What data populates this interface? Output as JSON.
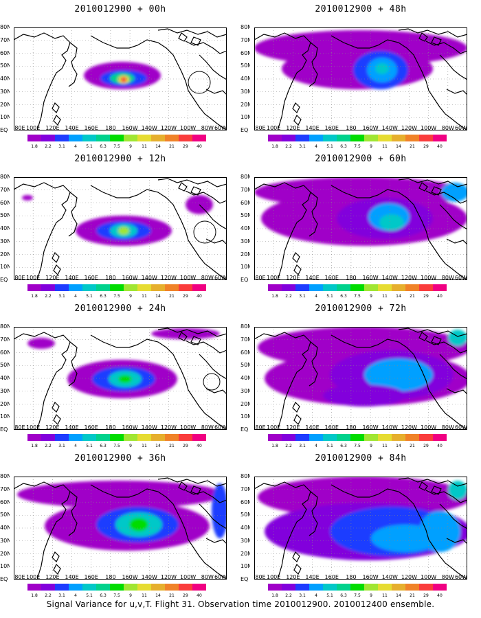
{
  "panels": [
    {
      "title": "2010012900 + 00h",
      "lead": "00h"
    },
    {
      "title": "2010012900 + 48h",
      "lead": "48h"
    },
    {
      "title": "2010012900 + 12h",
      "lead": "12h"
    },
    {
      "title": "2010012900 + 60h",
      "lead": "60h"
    },
    {
      "title": "2010012900 + 24h",
      "lead": "24h"
    },
    {
      "title": "2010012900 + 72h",
      "lead": "72h"
    },
    {
      "title": "2010012900 + 36h",
      "lead": "36h"
    },
    {
      "title": "2010012900 + 84h",
      "lead": "84h"
    }
  ],
  "lat_labels": [
    "80N",
    "70N",
    "60N",
    "50N",
    "40N",
    "30N",
    "20N",
    "10N",
    "EQ"
  ],
  "lon_labels": [
    "80E",
    "100E",
    "120E",
    "140E",
    "160E",
    "180",
    "160W",
    "140W",
    "120W",
    "100W",
    "80W",
    "60W"
  ],
  "colorbar": {
    "levels": [
      "1.8",
      "2.2",
      "3.1",
      "4",
      "5.1",
      "6.3",
      "7.5",
      "9",
      "11",
      "14",
      "21",
      "29",
      "40"
    ],
    "colors": [
      "#a000c8",
      "#8200dc",
      "#1e3cff",
      "#00a0ff",
      "#00c8c8",
      "#00d28c",
      "#00dc00",
      "#a0e632",
      "#e6dc32",
      "#e6af2d",
      "#f08228",
      "#fa3c3c",
      "#f00082"
    ]
  },
  "caption": "Signal Variance for u,v,T. Flight 31. Observation time 2010012900. 2010012400 ensemble."
}
